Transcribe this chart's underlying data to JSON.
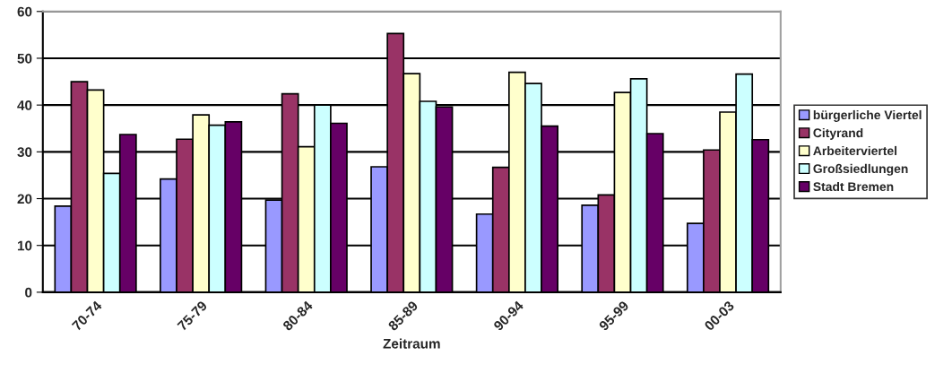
{
  "chart_data": {
    "type": "bar",
    "xlabel": "Zeitraum",
    "categories": [
      "70-74",
      "75-79",
      "80-84",
      "85-89",
      "90-94",
      "95-99",
      "00-03"
    ],
    "series": [
      {
        "name": "bürgerliche Viertel",
        "color": "#9999ff",
        "values": [
          18.4,
          24.2,
          19.7,
          26.8,
          16.7,
          18.6,
          14.7
        ]
      },
      {
        "name": "Cityrand",
        "color": "#993366",
        "values": [
          45,
          32.7,
          42.4,
          55.3,
          26.7,
          20.8,
          30.4
        ]
      },
      {
        "name": "Arbeiterviertel",
        "color": "#ffffcc",
        "values": [
          43.2,
          37.9,
          31.1,
          46.7,
          47,
          42.7,
          38.5
        ]
      },
      {
        "name": "Großsiedlungen",
        "color": "#ccffff",
        "values": [
          25.4,
          35.7,
          40,
          40.8,
          44.6,
          45.6,
          46.6
        ]
      },
      {
        "name": "Stadt Bremen",
        "color": "#660066",
        "values": [
          33.7,
          36.4,
          36.1,
          39.6,
          35.5,
          33.9,
          32.6
        ]
      }
    ],
    "ylim": [
      0,
      60
    ],
    "yticks": [
      0,
      10,
      20,
      30,
      40,
      50,
      60
    ],
    "grid": "y",
    "legend": "right"
  }
}
